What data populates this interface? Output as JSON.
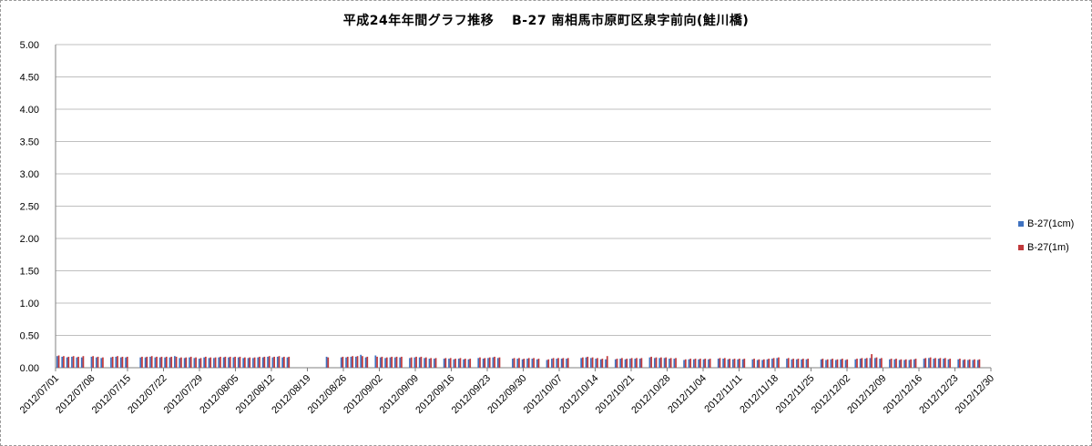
{
  "title": "平成24年年間グラフ推移　 B-27 南相馬市原町区泉字前向(鮭川橋)",
  "colors": {
    "series1": "#3f72c0",
    "series2": "#c0393b",
    "grid": "#bfbfbf",
    "axis": "#808080"
  },
  "chart_data": {
    "type": "bar",
    "title": "平成24年年間グラフ推移　 B-27 南相馬市原町区泉字前向(鮭川橋)",
    "xlabel": "",
    "ylabel": "",
    "ylim": [
      0,
      5
    ],
    "yticks": [
      "0.00",
      "0.50",
      "1.00",
      "1.50",
      "2.00",
      "2.50",
      "3.00",
      "3.50",
      "4.00",
      "4.50",
      "5.00"
    ],
    "grid": true,
    "legend_position": "right",
    "x_tick_labels": [
      "2012/07/01",
      "2012/07/08",
      "2012/07/15",
      "2012/07/22",
      "2012/07/29",
      "2012/08/05",
      "2012/08/12",
      "2012/08/19",
      "2012/08/26",
      "2012/09/02",
      "2012/09/09",
      "2012/09/16",
      "2012/09/23",
      "2012/09/30",
      "2012/10/07",
      "2012/10/14",
      "2012/10/21",
      "2012/10/28",
      "2012/11/04",
      "2012/11/11",
      "2012/11/18",
      "2012/11/25",
      "2012/12/02",
      "2012/12/09",
      "2012/12/16",
      "2012/12/23",
      "2012/12/30"
    ],
    "series": [
      {
        "name": "B-27(1cm)",
        "values": [
          0.18,
          0.17,
          0.16,
          0.17,
          0.16,
          0.16,
          null,
          0.17,
          0.16,
          0.15,
          null,
          0.16,
          0.17,
          0.16,
          0.16,
          null,
          null,
          0.16,
          0.16,
          0.17,
          0.16,
          0.16,
          0.16,
          0.16,
          0.18,
          0.15,
          0.15,
          0.16,
          0.15,
          0.14,
          0.16,
          0.15,
          0.15,
          0.16,
          0.16,
          0.16,
          0.16,
          0.16,
          0.15,
          0.15,
          0.15,
          0.16,
          0.16,
          0.17,
          0.16,
          0.17,
          0.16,
          0.16,
          null,
          null,
          null,
          null,
          null,
          null,
          null,
          0.17,
          null,
          null,
          0.16,
          0.16,
          0.17,
          0.17,
          0.2,
          0.16,
          null,
          0.19,
          0.16,
          0.15,
          0.16,
          0.16,
          0.16,
          null,
          0.15,
          0.16,
          0.16,
          0.15,
          0.14,
          0.14,
          null,
          0.14,
          0.14,
          0.13,
          0.14,
          0.13,
          0.13,
          null,
          0.15,
          0.14,
          0.15,
          0.16,
          0.15,
          null,
          null,
          0.14,
          0.14,
          0.13,
          0.14,
          0.14,
          0.13,
          null,
          0.12,
          0.14,
          0.14,
          0.14,
          0.14,
          null,
          null,
          0.15,
          0.16,
          0.15,
          0.14,
          0.13,
          0.13,
          null,
          0.13,
          0.14,
          0.13,
          0.14,
          0.14,
          0.14,
          null,
          0.16,
          0.15,
          0.15,
          0.15,
          0.14,
          0.14,
          null,
          0.12,
          0.13,
          0.13,
          0.13,
          0.13,
          0.13,
          null,
          0.14,
          0.14,
          0.13,
          0.13,
          0.13,
          0.13,
          null,
          0.13,
          0.12,
          0.12,
          0.13,
          0.14,
          0.15,
          null,
          0.14,
          0.13,
          0.13,
          0.13,
          0.13,
          null,
          null,
          0.13,
          0.12,
          0.13,
          0.12,
          0.13,
          0.12,
          null,
          0.13,
          0.14,
          0.14,
          0.15,
          0.15,
          0.14,
          null,
          0.13,
          0.13,
          0.12,
          0.12,
          0.12,
          0.13,
          null,
          0.14,
          0.15,
          0.14,
          0.14,
          0.14,
          0.13,
          null,
          0.13,
          0.12,
          0.12,
          0.12,
          0.12,
          null,
          null
        ]
      },
      {
        "name": "B-27(1m)",
        "values": [
          0.19,
          0.18,
          0.17,
          0.18,
          0.17,
          0.18,
          null,
          0.18,
          0.17,
          0.16,
          null,
          0.17,
          0.18,
          0.17,
          0.17,
          null,
          null,
          0.17,
          0.17,
          0.18,
          0.17,
          0.17,
          0.17,
          0.17,
          0.17,
          0.16,
          0.16,
          0.17,
          0.16,
          0.15,
          0.17,
          0.16,
          0.16,
          0.17,
          0.17,
          0.17,
          0.17,
          0.17,
          0.16,
          0.16,
          0.16,
          0.17,
          0.17,
          0.18,
          0.17,
          0.18,
          0.17,
          0.17,
          null,
          null,
          null,
          null,
          null,
          null,
          null,
          0.16,
          null,
          null,
          0.17,
          0.17,
          0.18,
          0.18,
          0.18,
          0.17,
          null,
          0.17,
          0.17,
          0.16,
          0.17,
          0.17,
          0.17,
          null,
          0.16,
          0.17,
          0.17,
          0.16,
          0.15,
          0.15,
          null,
          0.15,
          0.15,
          0.14,
          0.15,
          0.14,
          0.14,
          null,
          0.16,
          0.15,
          0.16,
          0.17,
          0.16,
          null,
          null,
          0.15,
          0.15,
          0.14,
          0.15,
          0.15,
          0.14,
          null,
          0.13,
          0.15,
          0.15,
          0.15,
          0.15,
          null,
          null,
          0.16,
          0.17,
          0.16,
          0.15,
          0.14,
          0.18,
          null,
          0.14,
          0.15,
          0.14,
          0.15,
          0.15,
          0.15,
          null,
          0.17,
          0.16,
          0.16,
          0.16,
          0.15,
          0.15,
          null,
          0.13,
          0.14,
          0.14,
          0.14,
          0.14,
          0.14,
          null,
          0.15,
          0.15,
          0.14,
          0.14,
          0.14,
          0.14,
          null,
          0.14,
          0.13,
          0.13,
          0.14,
          0.15,
          0.16,
          null,
          0.15,
          0.14,
          0.14,
          0.14,
          0.14,
          null,
          null,
          0.14,
          0.13,
          0.14,
          0.13,
          0.14,
          0.13,
          null,
          0.14,
          0.15,
          0.15,
          0.21,
          0.16,
          0.15,
          null,
          0.14,
          0.14,
          0.13,
          0.13,
          0.13,
          0.14,
          null,
          0.15,
          0.16,
          0.15,
          0.15,
          0.15,
          0.14,
          null,
          0.14,
          0.13,
          0.13,
          0.13,
          0.13,
          null,
          null
        ]
      }
    ]
  }
}
